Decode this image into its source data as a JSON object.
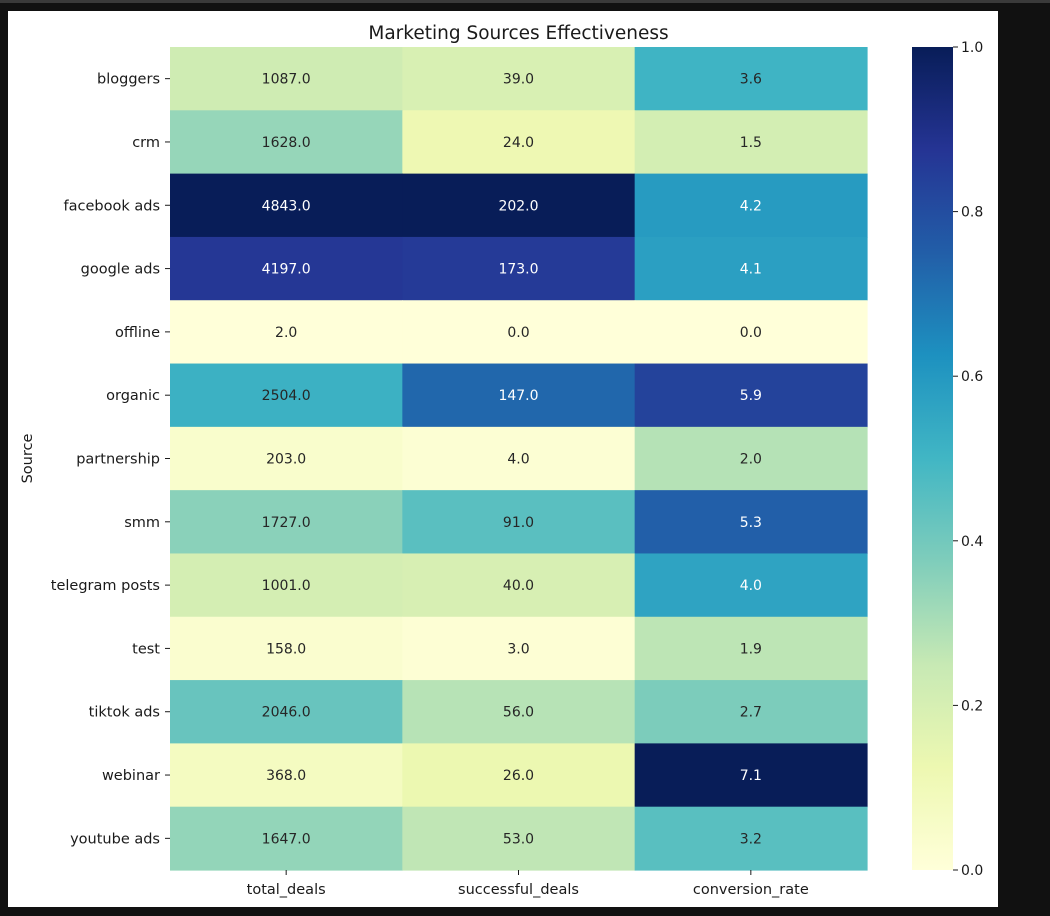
{
  "chart_data": {
    "type": "heatmap",
    "title": "Marketing Sources Effectiveness",
    "ylabel": "Source",
    "xlabel": "",
    "colormap": "YlGnBu",
    "columns": [
      "total_deals",
      "successful_deals",
      "conversion_rate"
    ],
    "rows": [
      "bloggers",
      "crm",
      "facebook ads",
      "google ads",
      "offline",
      "organic",
      "partnership",
      "smm",
      "telegram posts",
      "test",
      "tiktok ads",
      "webinar",
      "youtube ads"
    ],
    "values": [
      [
        1087.0,
        39.0,
        3.6
      ],
      [
        1628.0,
        24.0,
        1.5
      ],
      [
        4843.0,
        202.0,
        4.2
      ],
      [
        4197.0,
        173.0,
        4.1
      ],
      [
        2.0,
        0.0,
        0.0
      ],
      [
        2504.0,
        147.0,
        5.9
      ],
      [
        203.0,
        4.0,
        2.0
      ],
      [
        1727.0,
        91.0,
        5.3
      ],
      [
        1001.0,
        40.0,
        4.0
      ],
      [
        158.0,
        3.0,
        1.9
      ],
      [
        2046.0,
        56.0,
        2.7
      ],
      [
        368.0,
        26.0,
        7.1
      ],
      [
        1647.0,
        53.0,
        3.2
      ]
    ],
    "value_format": "0.0",
    "colorbar": {
      "range": [
        0.0,
        1.0
      ],
      "ticks": [
        "0.0",
        "0.2",
        "0.4",
        "0.6",
        "0.8",
        "1.0"
      ]
    }
  }
}
